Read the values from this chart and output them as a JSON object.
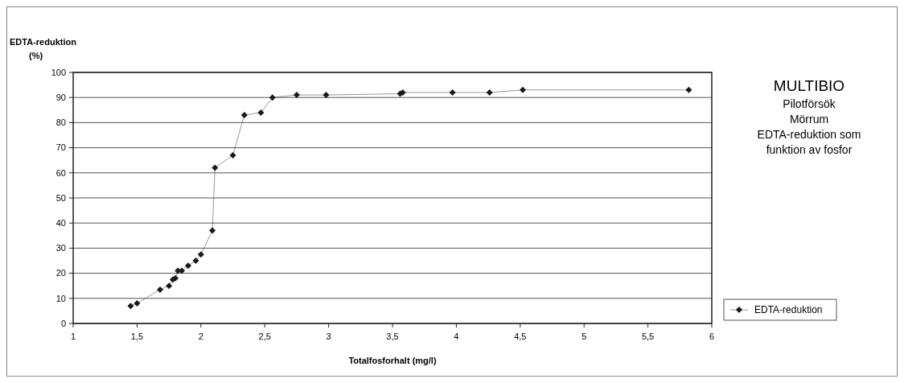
{
  "chart_data": {
    "type": "line",
    "title": "MULTIBIO",
    "subtitle": "Pilotförsök\nMörrum\nEDTA-reduktion som\nfunktion av fosfor",
    "xlabel": "Totalfosforhalt (mg/l)",
    "ylabel": "EDTA-reduktion\n(%)",
    "xlim": [
      1,
      6
    ],
    "xticks": [
      1,
      {
        "value": 1.5,
        "label": "1,5"
      },
      2,
      {
        "value": 2.5,
        "label": "2,5"
      },
      3,
      {
        "value": 3.5,
        "label": "3,5"
      },
      4,
      {
        "value": 4.5,
        "label": "4,5"
      },
      5,
      {
        "value": 5.5,
        "label": "5,5"
      },
      6
    ],
    "ylim": [
      0,
      100
    ],
    "yticks": [
      0,
      10,
      20,
      30,
      40,
      50,
      60,
      70,
      80,
      90,
      100
    ],
    "grid": "y",
    "legend": "bottom right",
    "marker": "diamond",
    "line_style": "solid",
    "series": [
      {
        "name": "EDTA-reduktion",
        "color": "#1a1a1a",
        "x": [
          1.45,
          1.5,
          1.68,
          1.75,
          1.78,
          1.8,
          1.82,
          1.85,
          1.9,
          1.96,
          2.0,
          2.09,
          2.11,
          2.25,
          2.34,
          2.47,
          2.56,
          2.75,
          2.98,
          3.56,
          3.58,
          3.97,
          4.26,
          4.52,
          5.82
        ],
        "values": [
          7,
          8,
          13.5,
          15,
          17.5,
          18,
          21,
          21,
          23,
          25,
          27.5,
          37,
          62,
          67,
          83,
          84,
          90,
          91,
          91,
          91.5,
          92,
          92,
          92,
          93,
          93
        ]
      }
    ]
  }
}
